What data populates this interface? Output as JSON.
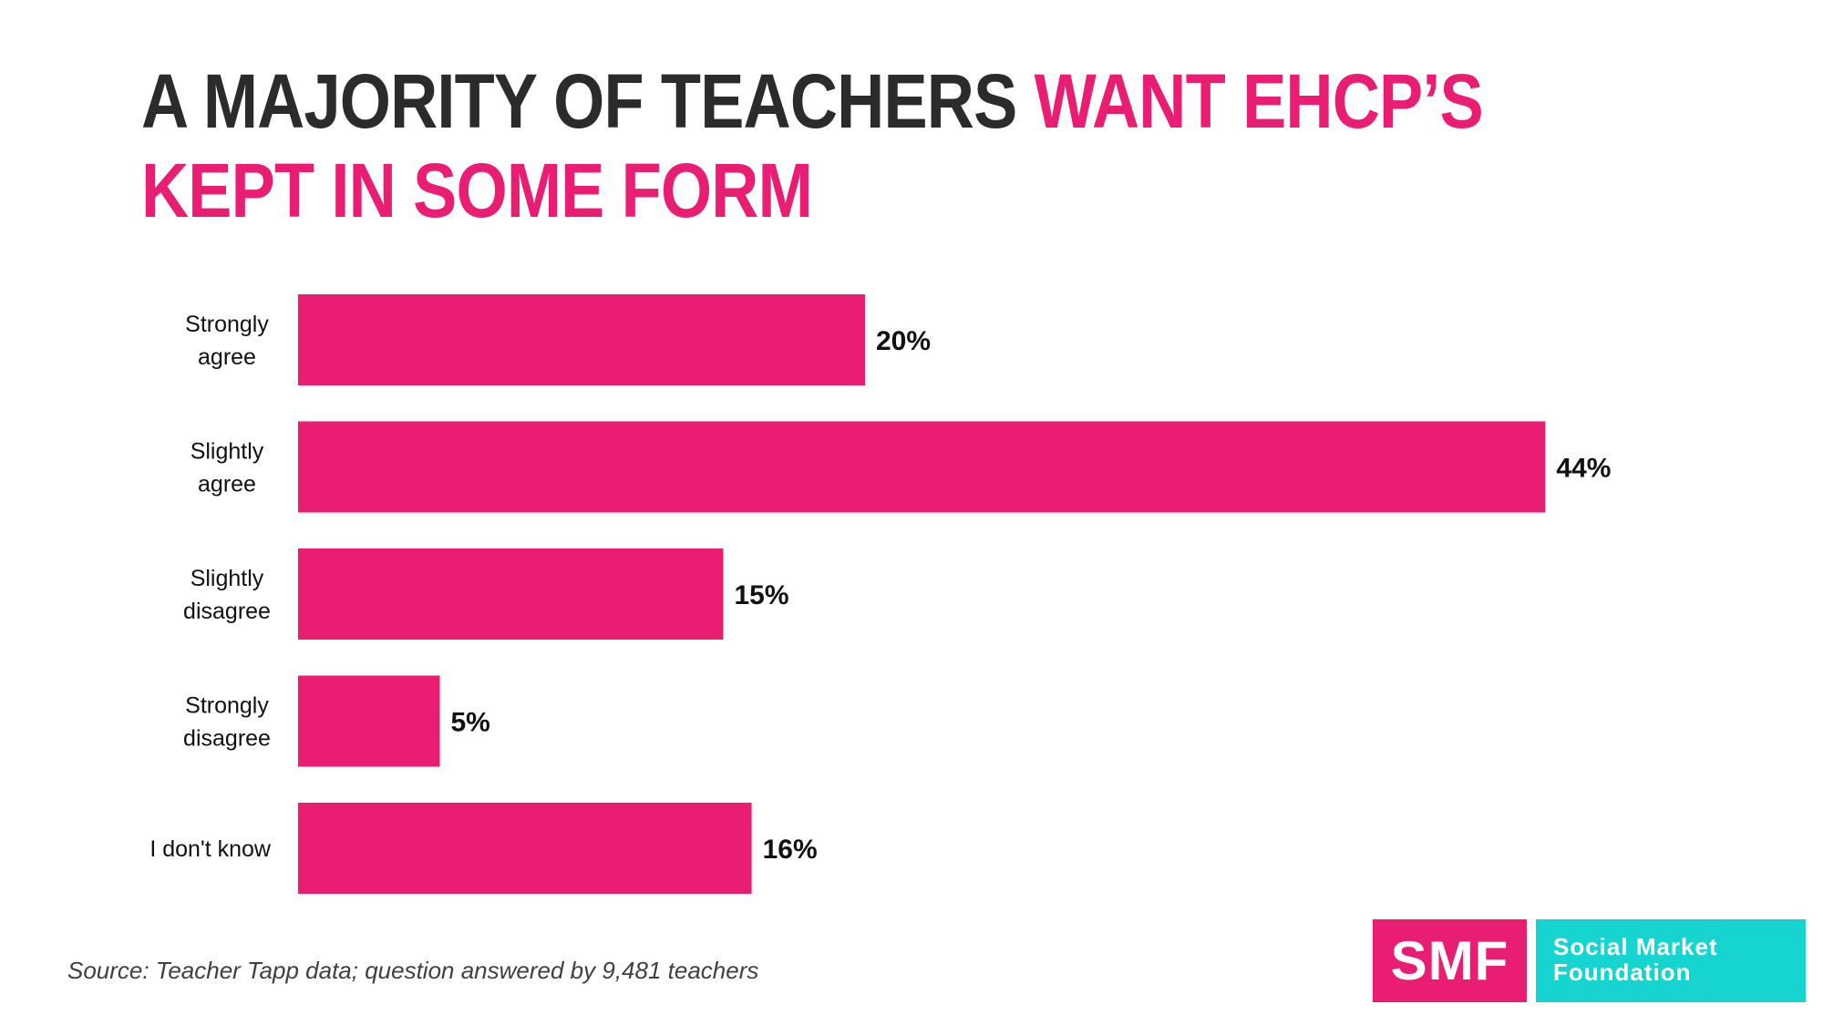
{
  "title": {
    "part1": "A MAJORITY OF TEACHERS ",
    "part2": "WANT EHCP’S KEPT IN SOME FORM"
  },
  "chart_data": {
    "type": "bar",
    "orientation": "horizontal",
    "categories": [
      [
        "Strongly",
        "agree"
      ],
      [
        "Slightly",
        "agree"
      ],
      [
        "Slightly",
        "disagree"
      ],
      [
        "Strongly",
        "disagree"
      ],
      [
        "I don't know"
      ]
    ],
    "values": [
      20,
      44,
      15,
      5,
      16
    ],
    "value_labels": [
      "20%",
      "44%",
      "15%",
      "5%",
      "16%"
    ],
    "unit": "%",
    "grid": false,
    "legend": "none",
    "bar_color": "#e91e73"
  },
  "source": "Source: Teacher Tapp data; question answered by 9,481 teachers",
  "logo": {
    "mark": "SMF",
    "name_line1": "Social Market",
    "name_line2": "Foundation"
  },
  "colors": {
    "accent": "#e91e73",
    "logo_teal": "#16d4cf",
    "title_dark": "#2b2b2b"
  }
}
